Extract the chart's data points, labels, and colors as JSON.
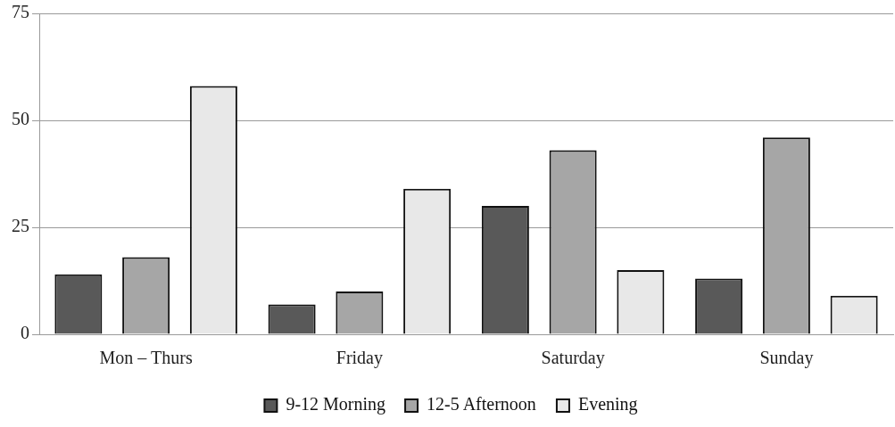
{
  "chart_data": {
    "type": "bar",
    "categories": [
      "Mon – Thurs",
      "Friday",
      "Saturday",
      "Sunday"
    ],
    "series": [
      {
        "name": "9-12 Morning",
        "color": "#595959",
        "values": [
          14,
          7,
          30,
          13
        ]
      },
      {
        "name": "12-5 Afternoon",
        "color": "#a6a6a6",
        "values": [
          18,
          10,
          43,
          46
        ]
      },
      {
        "name": "Evening",
        "color": "#e8e8e8",
        "values": [
          58,
          34,
          15,
          9
        ]
      }
    ],
    "ylim": [
      0,
      75
    ],
    "yticks": [
      0,
      25,
      50,
      75
    ],
    "grid": "y",
    "legend": "bottom"
  }
}
